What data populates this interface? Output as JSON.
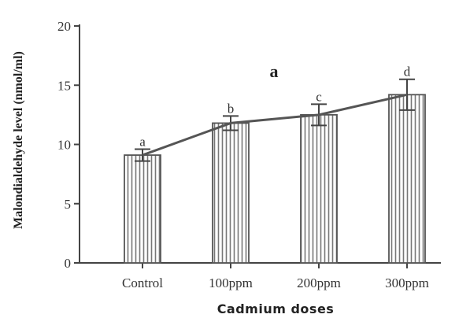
{
  "chart_data": {
    "type": "bar",
    "panel_label": "a",
    "categories": [
      "Control",
      "100ppm",
      "200ppm",
      "300ppm"
    ],
    "values": [
      9.1,
      11.8,
      12.5,
      14.2
    ],
    "errors": [
      0.5,
      0.6,
      0.9,
      1.3
    ],
    "significance_letters": [
      "a",
      "b",
      "c",
      "d"
    ],
    "overlay_line": true,
    "xlabel": "Cadmium doses",
    "ylabel": "Malondialdehyde level (nmol/ml)",
    "ylim": [
      0,
      20
    ],
    "yticks": [
      0,
      5,
      10,
      15,
      20
    ],
    "bar_pattern": "vertical-hatch",
    "grid": false,
    "colors": {
      "bar_fill": "#ffffff",
      "bar_stroke": "#555555",
      "hatch": "#777777",
      "line": "#555555",
      "axis": "#444444"
    }
  }
}
